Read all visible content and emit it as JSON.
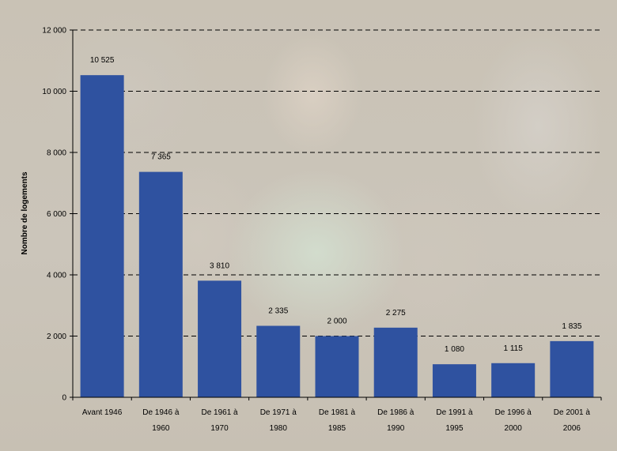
{
  "chart_data": {
    "type": "bar",
    "ylabel": "Nombre de logements",
    "xlabel": "",
    "ylim": [
      0,
      12000
    ],
    "yticks": [
      0,
      2000,
      4000,
      6000,
      8000,
      10000,
      12000
    ],
    "ytick_labels": [
      "0",
      "2 000",
      "4 000",
      "6 000",
      "8 000",
      "10 000",
      "12 000"
    ],
    "grid": "horizontal-dashed",
    "categories": [
      [
        "Avant 1946"
      ],
      [
        "De 1946 à",
        "1960"
      ],
      [
        "De 1961 à",
        "1970"
      ],
      [
        "De 1971 à",
        "1980"
      ],
      [
        "De 1981 à",
        "1985"
      ],
      [
        "De 1986 à",
        "1990"
      ],
      [
        "De 1991 à",
        "1995"
      ],
      [
        "De 1996 à",
        "2000"
      ],
      [
        "De 2001 à",
        "2006"
      ]
    ],
    "values": [
      10525,
      7365,
      3810,
      2335,
      2000,
      2275,
      1080,
      1115,
      1835
    ],
    "value_labels": [
      "10 525",
      "7 365",
      "3 810",
      "2 335",
      "2 000",
      "2 275",
      "1 080",
      "1 115",
      "1 835"
    ],
    "bar_color": "#2f52a0"
  }
}
